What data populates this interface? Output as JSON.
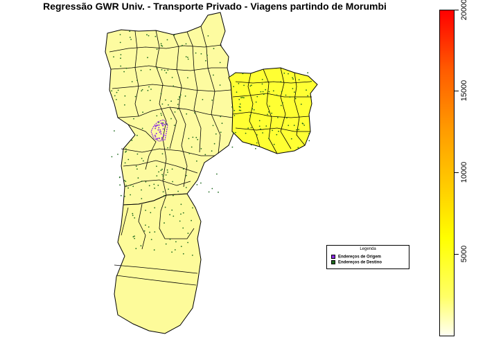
{
  "title": "Regressão GWR Univ. - Transporte Privado - Viagens partindo de Morumbi",
  "legend": {
    "title": "Legenda",
    "items": [
      {
        "label": "Endereços de Origem",
        "color": "#8b2be2"
      },
      {
        "label": "Endereços de Destino",
        "color": "#1f6b1f"
      }
    ]
  },
  "color_scale": {
    "min": 0,
    "max": 20000,
    "ticks": [
      "5000",
      "10000",
      "15000",
      "20000"
    ],
    "colors": [
      "#fffff2",
      "#ffff00",
      "#ffcc00",
      "#ff9900",
      "#ff0000"
    ]
  },
  "map": {
    "fill_west": "#fdfba0",
    "fill_east": "#ffff33",
    "fill_south": "#fdfb9a",
    "outline": "#000000",
    "origin_color": "#8b2be2",
    "destination_color": "#1f6b1f"
  }
}
